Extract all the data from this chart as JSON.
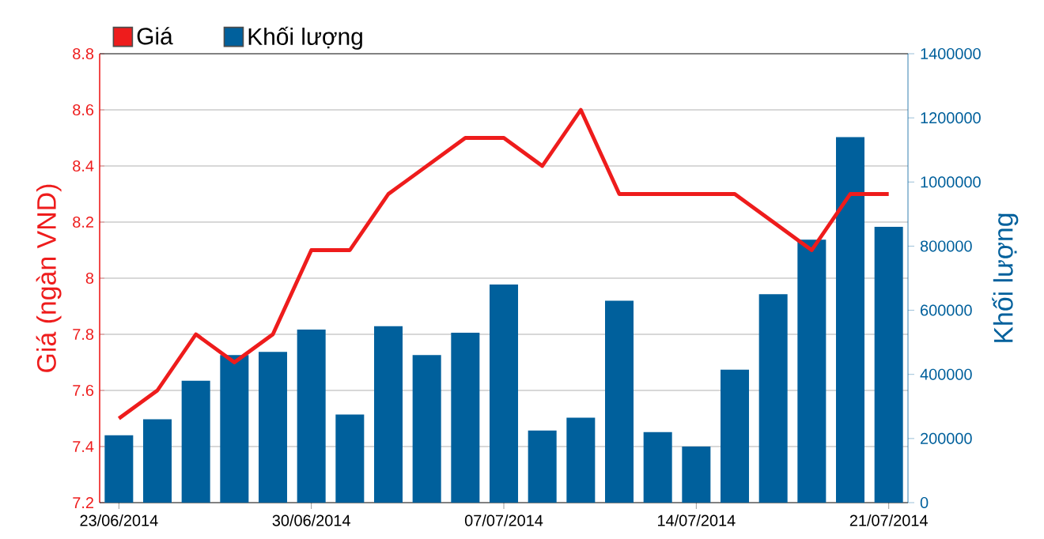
{
  "chart_data": {
    "type": "bar",
    "categories": [
      "23/06/2014",
      null,
      null,
      null,
      null,
      "30/06/2014",
      null,
      null,
      null,
      null,
      "07/07/2014",
      null,
      null,
      null,
      null,
      "14/07/2014",
      null,
      null,
      null,
      null,
      "21/07/2014"
    ],
    "ylabel": "Giá (ngàn VND)",
    "y2label": "Khối lượng",
    "ylim": [
      7.2,
      8.8
    ],
    "yticks": [
      7.2,
      7.4,
      7.6,
      7.8,
      8,
      8.2,
      8.4,
      8.6,
      8.8
    ],
    "y2lim": [
      0,
      1400000
    ],
    "y2ticks": [
      0,
      200000,
      400000,
      600000,
      800000,
      1000000,
      1200000,
      1400000
    ],
    "grid": "y",
    "legend": "top left",
    "series": [
      {
        "name": "Giá",
        "type": "line",
        "color": "#ee1c1c",
        "values": [
          7.5,
          7.6,
          7.8,
          7.7,
          7.8,
          8.1,
          8.1,
          8.3,
          8.4,
          8.5,
          8.5,
          8.4,
          8.6,
          8.3,
          8.3,
          8.3,
          8.3,
          8.2,
          8.1,
          8.3,
          8.3
        ]
      },
      {
        "name": "Khối lượng",
        "axis": "y2",
        "color": "#00609c",
        "values": [
          210000,
          260000,
          380000,
          460000,
          470000,
          540000,
          275000,
          550000,
          460000,
          530000,
          680000,
          225000,
          265000,
          630000,
          220000,
          175000,
          415000,
          650000,
          820000,
          1140000,
          860000
        ]
      }
    ]
  }
}
